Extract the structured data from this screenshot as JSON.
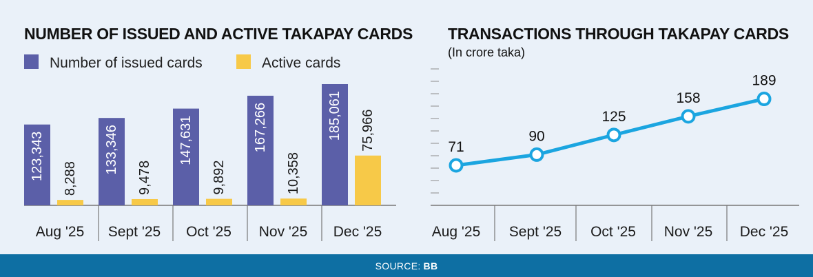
{
  "footer": {
    "source_label": "SOURCE:",
    "source_value": "BB"
  },
  "colors": {
    "issued": "#5b5fa8",
    "active": "#f7c948",
    "line": "#1ba5e0",
    "background": "#eaf1f9",
    "footer": "#0e6fa3"
  },
  "chart_data": [
    {
      "type": "bar",
      "title": "NUMBER OF ISSUED AND ACTIVE TAKAPAY CARDS",
      "categories": [
        "Aug '25",
        "Sept '25",
        "Oct '25",
        "Nov '25",
        "Dec '25"
      ],
      "series": [
        {
          "name": "Number of issued cards",
          "values": [
            123343,
            133346,
            147631,
            167266,
            185061
          ],
          "labels": [
            "123,343",
            "133,346",
            "147,631",
            "167,266",
            "185,061"
          ]
        },
        {
          "name": "Active cards",
          "values": [
            8288,
            9478,
            9892,
            10358,
            75966
          ],
          "labels": [
            "8,288",
            "9,478",
            "9,892",
            "10,358",
            "75,966"
          ]
        }
      ],
      "ylim": [
        0,
        185061
      ],
      "legend": "top-left",
      "grid": false
    },
    {
      "type": "line",
      "title": "TRANSACTIONS THROUGH TAKAPAY CARDS",
      "subtitle": "(In crore taka)",
      "categories": [
        "Aug '25",
        "Sept '25",
        "Oct '25",
        "Nov '25",
        "Dec '25"
      ],
      "values": [
        71,
        90,
        125,
        158,
        189
      ],
      "labels": [
        "71",
        "90",
        "125",
        "158",
        "189"
      ],
      "ylim": [
        0,
        230
      ],
      "grid": false
    }
  ]
}
